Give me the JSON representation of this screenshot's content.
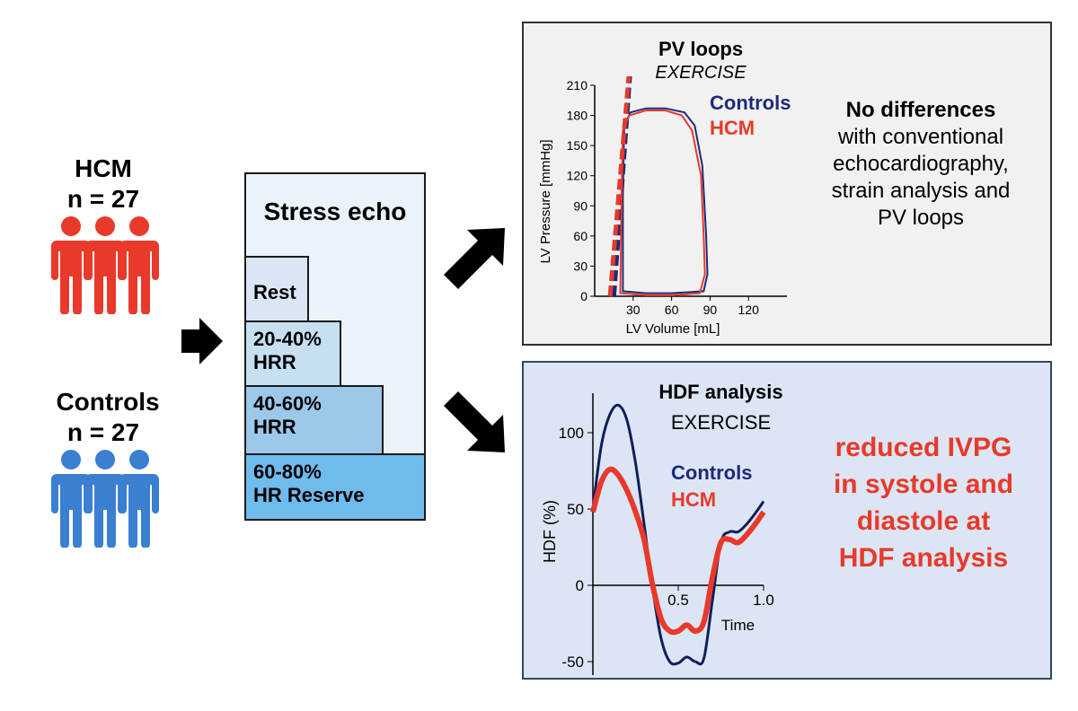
{
  "groups": {
    "hcm": {
      "name": "HCM",
      "n": "n = 27",
      "color": "#e8392a"
    },
    "controls": {
      "name": "Controls",
      "n": "n = 27",
      "color": "#3a7fd0"
    }
  },
  "stress_echo": {
    "title": "Stress echo",
    "steps": [
      {
        "line1": "Rest",
        "line2": "",
        "color": "#dbe6f4"
      },
      {
        "line1": "20-40%",
        "line2": "HRR",
        "color": "#c6e0f2"
      },
      {
        "line1": "40-60%",
        "line2": "HRR",
        "color": "#9cc8ea"
      },
      {
        "line1": "60-80%",
        "line2": "HR Reserve",
        "color": "#6fbbec"
      }
    ]
  },
  "pv_panel": {
    "title": "PV loops",
    "subtitle": "EXERCISE",
    "legend_controls": "Controls",
    "legend_hcm": "HCM",
    "conclusion": [
      "No differences",
      "with conventional",
      "echocardiography,",
      "strain analysis and",
      "PV loops"
    ],
    "colors": {
      "controls": "#1c2a7a",
      "hcm": "#e8392a"
    }
  },
  "hdf_panel": {
    "title": "HDF analysis",
    "subtitle": "EXERCISE",
    "legend_controls": "Controls",
    "legend_hcm": "HCM",
    "conclusion": [
      "reduced IVPG",
      "in systole and",
      "diastole at",
      "HDF analysis"
    ],
    "colors": {
      "controls": "#0f1f5c",
      "hcm": "#e8392a",
      "conclusion": "#e8392a"
    }
  },
  "chart_data": [
    {
      "type": "line",
      "title": "PV loops",
      "subtitle": "EXERCISE",
      "xlabel": "LV Volume [mL]",
      "ylabel": "LV Pressure [mmHg]",
      "xlim": [
        0,
        150
      ],
      "ylim": [
        0,
        210
      ],
      "xticks": [
        "30",
        "60",
        "90",
        "120"
      ],
      "yticks": [
        "0",
        "30",
        "60",
        "90",
        "120",
        "150",
        "180",
        "210"
      ],
      "series": [
        {
          "name": "Controls",
          "loop": [
            [
              22,
              5
            ],
            [
              22,
              100
            ],
            [
              23,
              170
            ],
            [
              28,
              183
            ],
            [
              40,
              187
            ],
            [
              55,
              187
            ],
            [
              70,
              183
            ],
            [
              78,
              170
            ],
            [
              84,
              130
            ],
            [
              87,
              60
            ],
            [
              88,
              22
            ],
            [
              85,
              5
            ],
            [
              60,
              3
            ],
            [
              40,
              3
            ],
            [
              22,
              5
            ]
          ],
          "esprvr": [
            [
              15,
              0
            ],
            [
              28,
              230
            ]
          ]
        },
        {
          "name": "HCM",
          "loop": [
            [
              20,
              3
            ],
            [
              21,
              100
            ],
            [
              22,
              165
            ],
            [
              27,
              180
            ],
            [
              40,
              185
            ],
            [
              55,
              185
            ],
            [
              68,
              180
            ],
            [
              76,
              165
            ],
            [
              83,
              120
            ],
            [
              85,
              60
            ],
            [
              86,
              22
            ],
            [
              82,
              3
            ],
            [
              60,
              1
            ],
            [
              40,
              1
            ],
            [
              20,
              3
            ]
          ],
          "esprvr": [
            [
              12,
              0
            ],
            [
              27,
              225
            ]
          ]
        }
      ]
    },
    {
      "type": "line",
      "title": "HDF analysis",
      "subtitle": "EXERCISE",
      "xlabel": "Time",
      "ylabel": "HDF (%)",
      "xlim": [
        0,
        1.0
      ],
      "ylim": [
        -50,
        120
      ],
      "xticks": [
        "0.5",
        "1.0"
      ],
      "yticks": [
        "-50",
        "0",
        "50",
        "100"
      ],
      "series": [
        {
          "name": "Controls",
          "x": [
            0,
            0.05,
            0.1,
            0.15,
            0.2,
            0.25,
            0.3,
            0.35,
            0.4,
            0.45,
            0.5,
            0.55,
            0.6,
            0.65,
            0.7,
            0.75,
            0.8,
            0.85,
            0.9,
            0.95,
            1.0
          ],
          "y": [
            50,
            92,
            112,
            118,
            108,
            80,
            40,
            -2,
            -35,
            -50,
            -51,
            -47,
            -50,
            -48,
            -10,
            28,
            35,
            35,
            40,
            47,
            55
          ]
        },
        {
          "name": "HCM",
          "x": [
            0,
            0.05,
            0.1,
            0.15,
            0.2,
            0.25,
            0.3,
            0.35,
            0.4,
            0.45,
            0.5,
            0.55,
            0.6,
            0.65,
            0.7,
            0.75,
            0.8,
            0.85,
            0.9,
            0.95,
            1.0
          ],
          "y": [
            48,
            68,
            76,
            72,
            62,
            48,
            30,
            0,
            -22,
            -30,
            -30,
            -26,
            -30,
            -24,
            5,
            28,
            30,
            28,
            33,
            40,
            48
          ]
        }
      ]
    }
  ]
}
